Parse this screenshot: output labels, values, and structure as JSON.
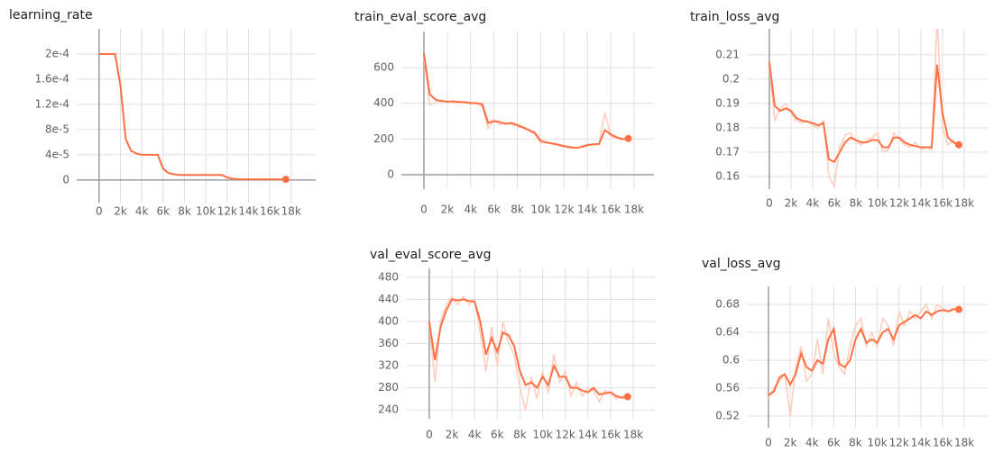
{
  "chart_data": [
    {
      "type": "line",
      "title": "learning_rate",
      "x": [
        0,
        500,
        1000,
        1500,
        2000,
        2500,
        3000,
        3500,
        4000,
        4500,
        5000,
        5500,
        6000,
        6500,
        7000,
        7500,
        8000,
        8500,
        9000,
        9500,
        10000,
        10500,
        11000,
        11500,
        12000,
        12500,
        13000,
        13500,
        14000,
        14500,
        15000,
        15500,
        16000,
        16500,
        17000,
        17500
      ],
      "series": [
        {
          "color": "#ff7043",
          "values": [
            0.0002,
            0.0002,
            0.0002,
            0.0002,
            0.00015,
            6.5e-05,
            4.6e-05,
            4.2e-05,
            4e-05,
            4e-05,
            4e-05,
            4e-05,
            1.8e-05,
            1.1e-05,
            9e-06,
            8e-06,
            8e-06,
            8e-06,
            8e-06,
            8e-06,
            8e-06,
            8e-06,
            8e-06,
            8e-06,
            4e-06,
            2e-06,
            1e-06,
            1e-06,
            1e-06,
            1e-06,
            1e-06,
            1e-06,
            1e-06,
            1e-06,
            1e-06,
            1e-06
          ]
        }
      ],
      "xlim": [
        -2100,
        20300
      ],
      "ylim": [
        -3.6e-05,
        0.00024
      ],
      "xticks": [
        0,
        {
          "value": 2000,
          "label": "2k"
        },
        {
          "value": 4000,
          "label": "4k"
        },
        {
          "value": 6000,
          "label": "6k"
        },
        {
          "value": 8000,
          "label": "8k"
        },
        {
          "value": 10000,
          "label": "10k"
        },
        {
          "value": 12000,
          "label": "12k"
        },
        {
          "value": 14000,
          "label": "14k"
        },
        {
          "value": 16000,
          "label": "16k"
        },
        {
          "value": 18000,
          "label": "18k"
        }
      ],
      "yticks": [
        0,
        {
          "value": 4e-05,
          "label": "4e-5"
        },
        {
          "value": 8e-05,
          "label": "8e-5"
        },
        {
          "value": 0.00012,
          "label": "1.2e-4"
        },
        {
          "value": 0.00016,
          "label": "1.6e-4"
        },
        {
          "value": 0.0002,
          "label": "2e-4"
        }
      ],
      "grid": true
    },
    {
      "type": "line",
      "title": "train_eval_score_avg",
      "x": [
        0,
        500,
        1000,
        1500,
        2000,
        2500,
        3000,
        3500,
        4000,
        4500,
        5000,
        5500,
        6000,
        6500,
        7000,
        7500,
        8000,
        8500,
        9000,
        9500,
        10000,
        10500,
        11000,
        11500,
        12000,
        12500,
        13000,
        13500,
        14000,
        14500,
        15000,
        15500,
        16000,
        16500,
        17000,
        17500
      ],
      "series": [
        {
          "color": "#ffccbc",
          "values": [
            660,
            390,
            405,
            420,
            405,
            415,
            400,
            410,
            395,
            405,
            380,
            260,
            310,
            280,
            290,
            280,
            270,
            260,
            245,
            225,
            175,
            185,
            170,
            165,
            155,
            150,
            148,
            160,
            170,
            165,
            175,
            350,
            215,
            205,
            195,
            205
          ]
        },
        {
          "color": "#ff7043",
          "values": [
            680,
            450,
            420,
            412,
            410,
            410,
            408,
            405,
            402,
            400,
            395,
            290,
            300,
            295,
            285,
            290,
            278,
            265,
            250,
            235,
            190,
            180,
            175,
            168,
            160,
            155,
            150,
            155,
            165,
            170,
            172,
            250,
            225,
            210,
            200,
            203
          ]
        }
      ],
      "xlim": [
        -1930,
        19700
      ],
      "ylim": [
        -81,
        802
      ],
      "xticks": [
        0,
        {
          "value": 2000,
          "label": "2k"
        },
        {
          "value": 4000,
          "label": "4k"
        },
        {
          "value": 6000,
          "label": "6k"
        },
        {
          "value": 8000,
          "label": "8k"
        },
        {
          "value": 10000,
          "label": "10k"
        },
        {
          "value": 12000,
          "label": "12k"
        },
        {
          "value": 14000,
          "label": "14k"
        },
        {
          "value": 16000,
          "label": "16k"
        },
        {
          "value": 18000,
          "label": "18k"
        }
      ],
      "yticks": [
        0,
        200,
        400,
        600
      ],
      "grid": true
    },
    {
      "type": "line",
      "title": "train_loss_avg",
      "x": [
        0,
        500,
        1000,
        1500,
        2000,
        2500,
        3000,
        3500,
        4000,
        4500,
        5000,
        5500,
        6000,
        6500,
        7000,
        7500,
        8000,
        8500,
        9000,
        9500,
        10000,
        10500,
        11000,
        11500,
        12000,
        12500,
        13000,
        13500,
        14000,
        14500,
        15000,
        15500,
        16000,
        16500,
        17000,
        17500
      ],
      "series": [
        {
          "color": "#ffccbc",
          "values": [
            0.205,
            0.183,
            0.188,
            0.19,
            0.186,
            0.183,
            0.182,
            0.183,
            0.181,
            0.18,
            0.183,
            0.16,
            0.156,
            0.172,
            0.177,
            0.178,
            0.174,
            0.173,
            0.175,
            0.176,
            0.178,
            0.17,
            0.171,
            0.178,
            0.175,
            0.173,
            0.172,
            0.174,
            0.171,
            0.172,
            0.171,
            0.225,
            0.18,
            0.173,
            0.175,
            0.172
          ]
        },
        {
          "color": "#ff7043",
          "values": [
            0.207,
            0.189,
            0.187,
            0.188,
            0.187,
            0.184,
            0.183,
            0.1825,
            0.182,
            0.181,
            0.182,
            0.167,
            0.166,
            0.17,
            0.174,
            0.176,
            0.175,
            0.174,
            0.174,
            0.175,
            0.175,
            0.172,
            0.172,
            0.176,
            0.176,
            0.174,
            0.173,
            0.1725,
            0.172,
            0.172,
            0.172,
            0.206,
            0.186,
            0.176,
            0.174,
            0.173
          ]
        }
      ],
      "xlim": [
        -2080,
        20170
      ],
      "ylim": [
        0.1548,
        0.2207
      ],
      "xticks": [
        0,
        {
          "value": 2000,
          "label": "2k"
        },
        {
          "value": 4000,
          "label": "4k"
        },
        {
          "value": 6000,
          "label": "6k"
        },
        {
          "value": 8000,
          "label": "8k"
        },
        {
          "value": 10000,
          "label": "10k"
        },
        {
          "value": 12000,
          "label": "12k"
        },
        {
          "value": 14000,
          "label": "14k"
        },
        {
          "value": 16000,
          "label": "16k"
        },
        {
          "value": 18000,
          "label": "18k"
        }
      ],
      "yticks": [
        0.16,
        0.17,
        0.18,
        0.19,
        0.2,
        0.21
      ],
      "grid": true
    },
    {
      "type": "line",
      "title": "val_eval_score_avg",
      "x": [
        0,
        500,
        1000,
        1500,
        2000,
        2500,
        3000,
        3500,
        4000,
        4500,
        5000,
        5500,
        6000,
        6500,
        7000,
        7500,
        8000,
        8500,
        9000,
        9500,
        10000,
        10500,
        11000,
        11500,
        12000,
        12500,
        13000,
        13500,
        14000,
        14500,
        15000,
        15500,
        16000,
        16500,
        17000,
        17500
      ],
      "series": [
        {
          "color": "#ffccbc",
          "values": [
            395,
            290,
            400,
            430,
            445,
            430,
            445,
            430,
            440,
            380,
            310,
            390,
            320,
            400,
            360,
            340,
            280,
            240,
            300,
            260,
            310,
            270,
            340,
            290,
            310,
            265,
            290,
            265,
            280,
            275,
            255,
            275,
            270,
            260,
            265,
            262
          ]
        },
        {
          "color": "#ff7043",
          "values": [
            400,
            330,
            390,
            420,
            440,
            438,
            440,
            437,
            436,
            400,
            340,
            370,
            345,
            380,
            375,
            355,
            310,
            285,
            290,
            280,
            300,
            285,
            320,
            300,
            300,
            280,
            280,
            275,
            272,
            280,
            268,
            270,
            272,
            265,
            262,
            264
          ]
        }
      ],
      "xlim": [
        -2060,
        19980
      ],
      "ylim": [
        224,
        496
      ],
      "xticks": [
        0,
        {
          "value": 2000,
          "label": "2k"
        },
        {
          "value": 4000,
          "label": "4k"
        },
        {
          "value": 6000,
          "label": "6k"
        },
        {
          "value": 8000,
          "label": "8k"
        },
        {
          "value": 10000,
          "label": "10k"
        },
        {
          "value": 12000,
          "label": "12k"
        },
        {
          "value": 14000,
          "label": "14k"
        },
        {
          "value": 16000,
          "label": "16k"
        },
        {
          "value": 18000,
          "label": "18k"
        }
      ],
      "yticks": [
        240,
        280,
        320,
        360,
        400,
        440,
        480
      ],
      "grid": true
    },
    {
      "type": "line",
      "title": "val_loss_avg",
      "x": [
        0,
        500,
        1000,
        1500,
        2000,
        2500,
        3000,
        3500,
        4000,
        4500,
        5000,
        5500,
        6000,
        6500,
        7000,
        7500,
        8000,
        8500,
        9000,
        9500,
        10000,
        10500,
        11000,
        11500,
        12000,
        12500,
        13000,
        13500,
        14000,
        14500,
        15000,
        15500,
        16000,
        16500,
        17000,
        17500
      ],
      "series": [
        {
          "color": "#ffccbc",
          "values": [
            0.545,
            0.56,
            0.57,
            0.58,
            0.52,
            0.59,
            0.62,
            0.57,
            0.58,
            0.63,
            0.58,
            0.66,
            0.61,
            0.59,
            0.58,
            0.62,
            0.65,
            0.66,
            0.62,
            0.64,
            0.62,
            0.66,
            0.65,
            0.62,
            0.67,
            0.65,
            0.67,
            0.66,
            0.67,
            0.68,
            0.66,
            0.68,
            0.675,
            0.67,
            0.675,
            0.672
          ]
        },
        {
          "color": "#ff7043",
          "values": [
            0.55,
            0.555,
            0.575,
            0.58,
            0.565,
            0.58,
            0.61,
            0.59,
            0.585,
            0.6,
            0.595,
            0.63,
            0.645,
            0.595,
            0.59,
            0.6,
            0.63,
            0.645,
            0.625,
            0.63,
            0.625,
            0.64,
            0.645,
            0.63,
            0.65,
            0.655,
            0.66,
            0.665,
            0.66,
            0.67,
            0.665,
            0.67,
            0.672,
            0.67,
            0.673,
            0.673
          ]
        }
      ],
      "xlim": [
        -1990,
        20150
      ],
      "ylim": [
        0.503,
        0.706
      ],
      "xticks": [
        0,
        {
          "value": 2000,
          "label": "2k"
        },
        {
          "value": 4000,
          "label": "4k"
        },
        {
          "value": 6000,
          "label": "6k"
        },
        {
          "value": 8000,
          "label": "8k"
        },
        {
          "value": 10000,
          "label": "10k"
        },
        {
          "value": 12000,
          "label": "12k"
        },
        {
          "value": 14000,
          "label": "14k"
        },
        {
          "value": 16000,
          "label": "16k"
        },
        {
          "value": 18000,
          "label": "18k"
        }
      ],
      "yticks": [
        0.52,
        0.56,
        0.6,
        0.64,
        0.68
      ],
      "grid": true
    }
  ]
}
